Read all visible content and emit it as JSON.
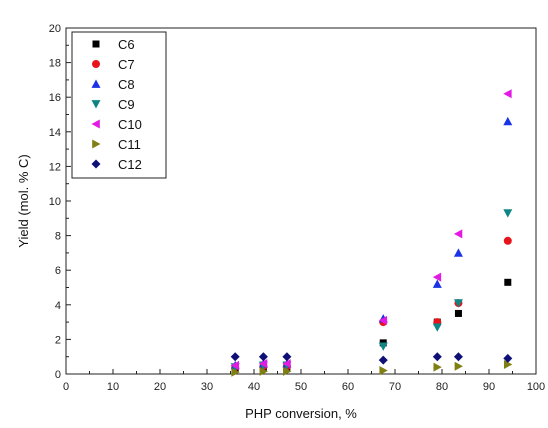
{
  "chart_data": {
    "type": "scatter",
    "xlabel": "PHP conversion, %",
    "ylabel": "Yield (mol. % C)",
    "xlim": [
      0,
      100
    ],
    "ylim": [
      0,
      20
    ],
    "x_ticks": [
      0,
      10,
      20,
      30,
      40,
      50,
      60,
      70,
      80,
      90,
      100
    ],
    "y_ticks": [
      0,
      2,
      4,
      6,
      8,
      10,
      12,
      14,
      16,
      18,
      20
    ],
    "grid": false,
    "legend_position": "top-left",
    "series": [
      {
        "name": "C6",
        "marker": "square",
        "color": "#000000",
        "points": [
          [
            36,
            0.35
          ],
          [
            42,
            0.4
          ],
          [
            47,
            0.4
          ],
          [
            67.5,
            1.8
          ],
          [
            79,
            3.0
          ],
          [
            83.5,
            3.5
          ],
          [
            94,
            5.3
          ]
        ]
      },
      {
        "name": "C7",
        "marker": "circle",
        "color": "#e8141c",
        "points": [
          [
            36,
            0.4
          ],
          [
            42,
            0.45
          ],
          [
            47,
            0.45
          ],
          [
            67.5,
            3.0
          ],
          [
            79,
            3.0
          ],
          [
            83.5,
            4.1
          ],
          [
            94,
            7.7
          ]
        ]
      },
      {
        "name": "C8",
        "marker": "triangle-up",
        "color": "#1a33e6",
        "points": [
          [
            36,
            0.5
          ],
          [
            42,
            0.6
          ],
          [
            47,
            0.6
          ],
          [
            67.5,
            3.2
          ],
          [
            79,
            5.2
          ],
          [
            83.5,
            7.0
          ],
          [
            94,
            14.6
          ]
        ]
      },
      {
        "name": "C9",
        "marker": "triangle-down",
        "color": "#0f8585",
        "points": [
          [
            36,
            0.4
          ],
          [
            42,
            0.5
          ],
          [
            47,
            0.5
          ],
          [
            67.5,
            1.6
          ],
          [
            79,
            2.7
          ],
          [
            83.5,
            4.1
          ],
          [
            94,
            9.3
          ]
        ]
      },
      {
        "name": "C10",
        "marker": "triangle-left",
        "color": "#e31ae3",
        "points": [
          [
            36,
            0.5
          ],
          [
            42,
            0.6
          ],
          [
            47,
            0.6
          ],
          [
            67.5,
            3.1
          ],
          [
            79,
            5.6
          ],
          [
            83.5,
            8.1
          ],
          [
            94,
            16.2
          ]
        ]
      },
      {
        "name": "C11",
        "marker": "triangle-right",
        "color": "#7f7f14",
        "points": [
          [
            36,
            0.1
          ],
          [
            42,
            0.15
          ],
          [
            47,
            0.15
          ],
          [
            67.5,
            0.2
          ],
          [
            79,
            0.4
          ],
          [
            83.5,
            0.45
          ],
          [
            94,
            0.55
          ]
        ]
      },
      {
        "name": "C12",
        "marker": "diamond",
        "color": "#0f0f78",
        "points": [
          [
            36,
            1.0
          ],
          [
            42,
            1.0
          ],
          [
            47,
            1.0
          ],
          [
            67.5,
            0.8
          ],
          [
            79,
            1.0
          ],
          [
            83.5,
            1.0
          ],
          [
            94,
            0.9
          ]
        ]
      }
    ]
  }
}
